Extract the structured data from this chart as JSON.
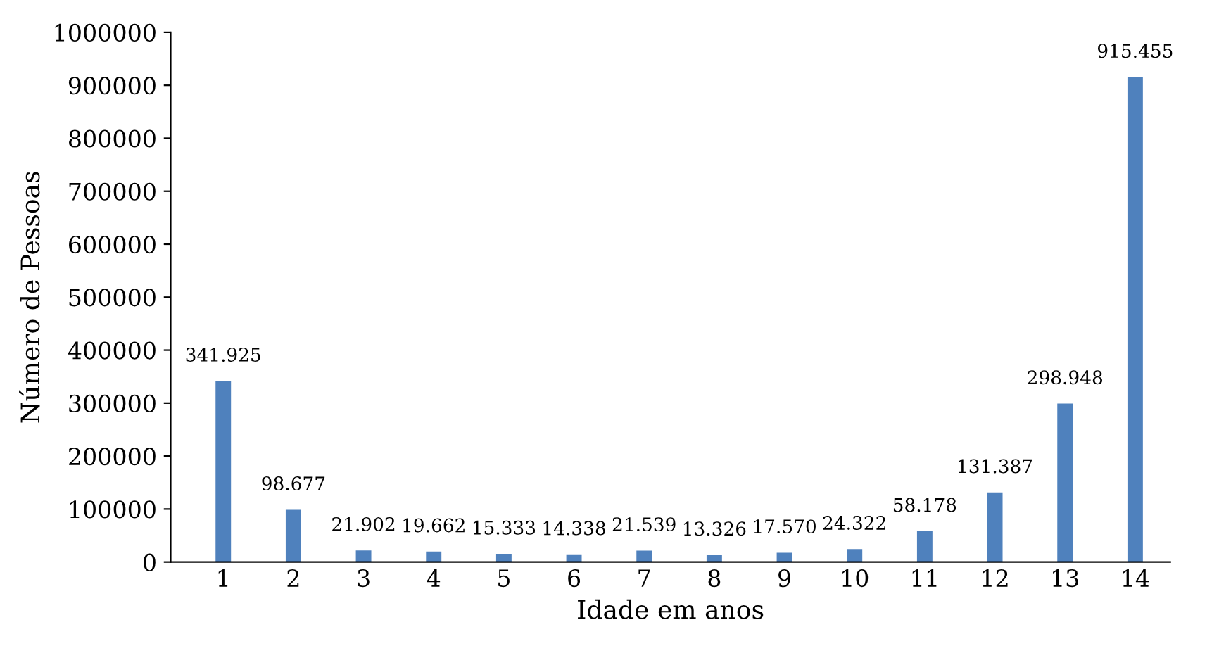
{
  "chart_data": {
    "type": "bar",
    "xlabel": "Idade em anos",
    "ylabel": "Número de Pessoas",
    "categories": [
      "1",
      "2",
      "3",
      "4",
      "5",
      "6",
      "7",
      "8",
      "9",
      "10",
      "11",
      "12",
      "13",
      "14"
    ],
    "values": [
      341925,
      98677,
      21902,
      19662,
      15333,
      14338,
      21539,
      13326,
      17570,
      24322,
      58178,
      131387,
      298948,
      915455
    ],
    "value_labels": [
      "341.925",
      "98.677",
      "21.902",
      "19.662",
      "15.333",
      "14.338",
      "21.539",
      "13.326",
      "17.570",
      "24.322",
      "58.178",
      "131.387",
      "298.948",
      "915.455"
    ],
    "color": "#4f81bd",
    "ylim": [
      0,
      1000000
    ],
    "yticks": [
      0,
      100000,
      200000,
      300000,
      400000,
      500000,
      600000,
      700000,
      800000,
      900000,
      1000000
    ],
    "grid": false,
    "legend": false
  }
}
